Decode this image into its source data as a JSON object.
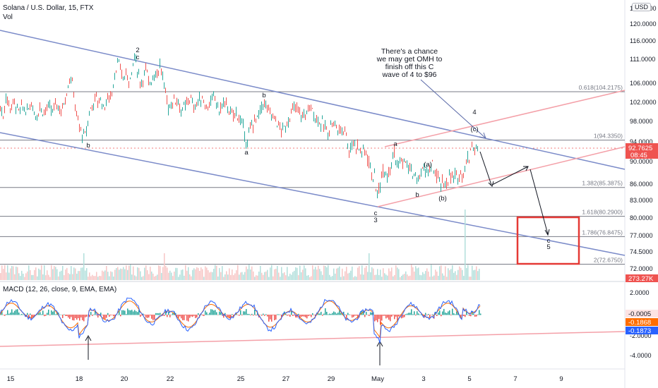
{
  "header": {
    "title": "Solana / U.S. Dollar, 15, FTX",
    "volume_label": "Vol",
    "currency": "USD",
    "macd_label": "MACD (12, 26, close, 9, EMA, EMA)"
  },
  "annotation": {
    "lines": [
      "There's a chance",
      "we may get OMH to",
      "finish off this C",
      "wave of 4 to $96"
    ]
  },
  "chart_data": {
    "type": "line",
    "x_ticks": [
      "15",
      "18",
      "20",
      "22",
      "25",
      "27",
      "29",
      "May",
      "3",
      "5",
      "7",
      "9"
    ],
    "price_ticks": [
      "124.0000",
      "120.0000",
      "116.0000",
      "111.0000",
      "106.0000",
      "102.0000",
      "98.0000",
      "94.0000",
      "90.0000",
      "86.0000",
      "83.0000",
      "80.0000",
      "77.0000",
      "74.5000",
      "72.0000"
    ],
    "price_range": [
      70.5,
      125
    ],
    "last_price": "92.7625",
    "countdown": "08:45",
    "volume_label_value": "273.27K",
    "price_path": [
      [
        0,
        101
      ],
      [
        4,
        99
      ],
      [
        8,
        103
      ],
      [
        14,
        101
      ],
      [
        20,
        102
      ],
      [
        26,
        100
      ],
      [
        32,
        101
      ],
      [
        38,
        100
      ],
      [
        44,
        102
      ],
      [
        50,
        99
      ],
      [
        56,
        101
      ],
      [
        62,
        100
      ],
      [
        68,
        101
      ],
      [
        74,
        100
      ],
      [
        80,
        102
      ],
      [
        86,
        100
      ],
      [
        92,
        103
      ],
      [
        98,
        107
      ],
      [
        102,
        106
      ],
      [
        108,
        99
      ],
      [
        114,
        96
      ],
      [
        118,
        95
      ],
      [
        122,
        96
      ],
      [
        126,
        100
      ],
      [
        130,
        101
      ],
      [
        134,
        103
      ],
      [
        138,
        102
      ],
      [
        142,
        103
      ],
      [
        146,
        101
      ],
      [
        150,
        102
      ],
      [
        154,
        103
      ],
      [
        158,
        104
      ],
      [
        162,
        108
      ],
      [
        166,
        110
      ],
      [
        170,
        109
      ],
      [
        174,
        107
      ],
      [
        178,
        108
      ],
      [
        182,
        107
      ],
      [
        186,
        108
      ],
      [
        190,
        112
      ],
      [
        194,
        109
      ],
      [
        198,
        106
      ],
      [
        202,
        107
      ],
      [
        206,
        109
      ],
      [
        210,
        106
      ],
      [
        214,
        107
      ],
      [
        218,
        108
      ],
      [
        222,
        108
      ],
      [
        226,
        110
      ],
      [
        230,
        107
      ],
      [
        234,
        104
      ],
      [
        238,
        101
      ],
      [
        244,
        102
      ],
      [
        250,
        103
      ],
      [
        256,
        100
      ],
      [
        262,
        101
      ],
      [
        268,
        103
      ],
      [
        274,
        101
      ],
      [
        280,
        102
      ],
      [
        286,
        103
      ],
      [
        292,
        101
      ],
      [
        298,
        102
      ],
      [
        304,
        103
      ],
      [
        310,
        100
      ],
      [
        316,
        102
      ],
      [
        322,
        101
      ],
      [
        328,
        99
      ],
      [
        334,
        100
      ],
      [
        340,
        98
      ],
      [
        346,
        96
      ],
      [
        350,
        93
      ],
      [
        354,
        97
      ],
      [
        360,
        98
      ],
      [
        366,
        99
      ],
      [
        372,
        102
      ],
      [
        376,
        101
      ],
      [
        380,
        100
      ],
      [
        386,
        99
      ],
      [
        392,
        98
      ],
      [
        398,
        96
      ],
      [
        404,
        97
      ],
      [
        410,
        99
      ],
      [
        416,
        101
      ],
      [
        422,
        100
      ],
      [
        428,
        99
      ],
      [
        434,
        100
      ],
      [
        440,
        101
      ],
      [
        446,
        99
      ],
      [
        452,
        98
      ],
      [
        458,
        97
      ],
      [
        464,
        96
      ],
      [
        470,
        98
      ],
      [
        476,
        97
      ],
      [
        482,
        96
      ],
      [
        488,
        97
      ],
      [
        494,
        92
      ],
      [
        500,
        94
      ],
      [
        506,
        93
      ],
      [
        512,
        92
      ],
      [
        518,
        92
      ],
      [
        522,
        90
      ],
      [
        526,
        88
      ],
      [
        530,
        87
      ],
      [
        534,
        84
      ],
      [
        538,
        86
      ],
      [
        542,
        89
      ],
      [
        548,
        88
      ],
      [
        554,
        90
      ],
      [
        558,
        92
      ],
      [
        562,
        89
      ],
      [
        566,
        90
      ],
      [
        572,
        90
      ],
      [
        578,
        89
      ],
      [
        584,
        88
      ],
      [
        588,
        87
      ],
      [
        592,
        87
      ],
      [
        596,
        88
      ],
      [
        602,
        89
      ],
      [
        606,
        88
      ],
      [
        612,
        89
      ],
      [
        616,
        88
      ],
      [
        622,
        86
      ],
      [
        626,
        86
      ],
      [
        630,
        86
      ],
      [
        634,
        87
      ],
      [
        640,
        87
      ],
      [
        646,
        87
      ],
      [
        652,
        88
      ],
      [
        656,
        88
      ],
      [
        660,
        90
      ],
      [
        664,
        91
      ],
      [
        668,
        94
      ],
      [
        672,
        92
      ],
      [
        676,
        93
      ],
      [
        678,
        93
      ]
    ],
    "macd_ticks": [
      "2.0000",
      "0.0000",
      "-2.0000",
      "-4.0000"
    ],
    "macd_range": [
      -5.5,
      3
    ],
    "macd_values": [
      "-0.0005",
      "-0.1868",
      "-0.1873"
    ],
    "fib_levels": [
      {
        "label": "0.618(104.2175)",
        "value": 104.2175
      },
      {
        "label": "1(94.3350)",
        "value": 94.335
      },
      {
        "label": "1.382(85.3875)",
        "value": 85.3875
      },
      {
        "label": "1.618(80.2900)",
        "value": 80.29
      },
      {
        "label": "1.786(76.8475)",
        "value": 76.8475
      },
      {
        "label": "2(72.6750)",
        "value": 72.675
      }
    ],
    "wave_labels": [
      "2",
      "c",
      "b",
      "a",
      "b",
      "c",
      "3",
      "a",
      "(a)",
      "b",
      "(b)",
      "4",
      "(c)",
      "c",
      "5"
    ],
    "colors": {
      "up": "#26a69a",
      "down": "#ef5350",
      "channel_blue": "#7b8bc9",
      "channel_pink": "#f4a0a8",
      "macd_line": "#2962ff",
      "signal_line": "#ff6d00",
      "target_box": "#e53935",
      "fib_line": "#787b86"
    }
  }
}
